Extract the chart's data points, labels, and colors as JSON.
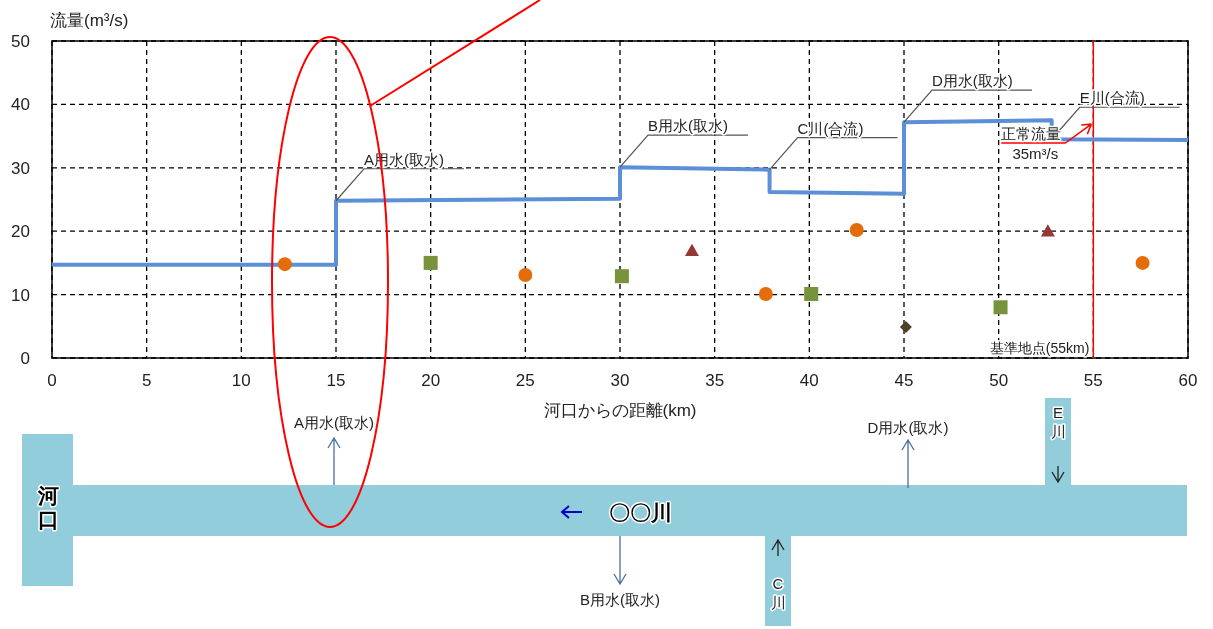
{
  "chart_data": {
    "type": "line",
    "ylabel": "流量(m³/s)",
    "xlabel": "河口からの距離(km)",
    "xlim": [
      0,
      60
    ],
    "xticks": [
      0,
      5,
      10,
      15,
      20,
      25,
      30,
      35,
      40,
      45,
      50,
      55,
      60
    ],
    "ylim": [
      0,
      50
    ],
    "yticks": [
      0,
      10,
      20,
      30,
      40,
      50
    ],
    "grid": true,
    "series": [
      {
        "color": "#5b8fd6",
        "x": [
          0,
          15,
          15,
          30,
          30,
          37.9,
          37.9,
          45,
          45,
          52.8,
          52.8,
          60
        ],
        "values": [
          14.7,
          14.7,
          24.8,
          25.1,
          30.1,
          29.7,
          26.2,
          25.9,
          37.2,
          37.5,
          34.5,
          34.4
        ]
      },
      {
        "type": "scatter",
        "marker": "circle",
        "color": "#e46c0a",
        "x": [
          12.3,
          25,
          37.7,
          42.5,
          57.6
        ],
        "values": [
          14.8,
          13.1,
          10.1,
          20.2,
          15
        ]
      },
      {
        "type": "scatter",
        "marker": "square",
        "color": "#77933c",
        "x": [
          20,
          30.1,
          40.1,
          50.1
        ],
        "values": [
          15,
          12.9,
          10.1,
          8
        ]
      },
      {
        "type": "scatter",
        "marker": "triangle",
        "color": "#953735",
        "x": [
          33.8,
          52.6
        ],
        "values": [
          16.9,
          20
        ]
      },
      {
        "type": "scatter",
        "marker": "diamond",
        "color": "#4f4228",
        "x": [
          45.1
        ],
        "values": [
          4.9
        ]
      }
    ],
    "ref_lines": [
      {
        "axis": "x",
        "value": 55,
        "label": "基準地点(55km)",
        "color": "#ff0000"
      }
    ],
    "annotations": [
      {
        "text": "A用水(取水)",
        "x": 15,
        "y": 24.8
      },
      {
        "text": "B用水(取水)",
        "x": 30,
        "y": 30.1
      },
      {
        "text": "C川(合流)",
        "x": 37.9,
        "y": 29.7
      },
      {
        "text": "D用水(取水)",
        "x": 45,
        "y": 37.2
      },
      {
        "text": "E川(合流)",
        "x": 52.8,
        "y": 34.5
      },
      {
        "text": "正常流量\n35m³/s",
        "x": 55,
        "y": 35
      },
      "河口",
      "〇〇川",
      "A用水(取水)",
      "B用水(取水)",
      "C川",
      "D用水(取水)",
      "E川"
    ]
  }
}
